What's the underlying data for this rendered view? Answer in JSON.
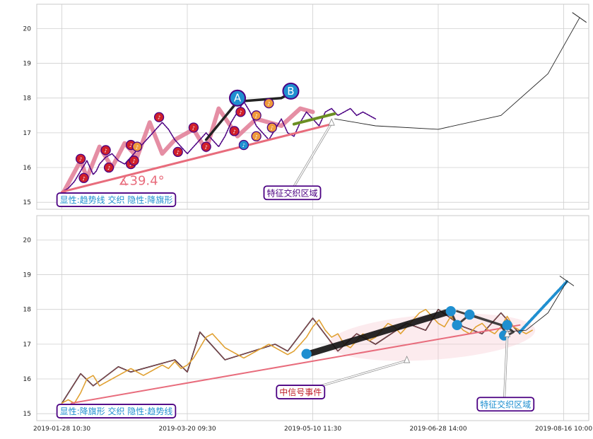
{
  "chart_data": [
    {
      "type": "line",
      "panel": "top",
      "ylim": [
        14.8,
        20.7
      ],
      "y_ticks": [
        15,
        16,
        17,
        18,
        19,
        20
      ],
      "x_domain": [
        -8,
        168
      ],
      "x_grid": [
        0,
        40,
        80,
        120,
        160
      ],
      "series": [
        {
          "role": "price",
          "color": "#4b0082",
          "x": [
            0,
            2,
            4,
            6,
            8,
            9,
            10,
            11,
            12,
            14,
            16,
            18,
            20,
            22,
            24,
            25,
            26,
            28,
            30,
            32,
            34,
            36,
            38,
            40,
            42,
            44,
            46,
            48,
            50,
            52,
            54,
            56,
            58,
            60,
            62,
            64,
            66,
            68,
            70,
            72,
            74,
            76,
            78,
            80,
            82,
            84,
            86,
            88,
            90,
            92,
            94,
            96,
            98,
            100
          ],
          "y": [
            15.3,
            15.4,
            15.6,
            15.9,
            16.2,
            16.0,
            15.8,
            15.9,
            16.1,
            16.3,
            16.4,
            16.2,
            16.1,
            16.3,
            16.5,
            16.6,
            16.7,
            16.9,
            17.1,
            17.3,
            17.1,
            16.8,
            16.6,
            16.4,
            16.6,
            16.8,
            17.0,
            16.8,
            16.6,
            16.9,
            17.3,
            17.6,
            17.9,
            17.6,
            17.2,
            17.0,
            16.8,
            17.1,
            17.4,
            17.0,
            16.9,
            17.3,
            17.6,
            17.4,
            17.2,
            17.6,
            17.7,
            17.5,
            17.6,
            17.7,
            17.5,
            17.6,
            17.5,
            17.4
          ]
        },
        {
          "role": "zigzag",
          "color": "#e07a94",
          "x": [
            0,
            6,
            8,
            12,
            16,
            20,
            24,
            28,
            32,
            36,
            42,
            46,
            50,
            56,
            62,
            70,
            76,
            80
          ],
          "y": [
            15.2,
            16.2,
            15.7,
            16.6,
            16.0,
            16.7,
            16.3,
            17.3,
            16.4,
            16.8,
            17.1,
            16.5,
            17.7,
            16.9,
            17.4,
            17.2,
            17.7,
            17.6
          ]
        },
        {
          "role": "trend-line",
          "color": "#e86c7c",
          "x": [
            0,
            86
          ],
          "y": [
            15.3,
            17.25
          ]
        },
        {
          "role": "feature-segment",
          "color": "#6b8e23",
          "x": [
            74,
            87
          ],
          "y": [
            17.25,
            17.55
          ]
        },
        {
          "role": "AB-leg",
          "color": "#222222",
          "x": [
            46,
            56,
            70,
            73
          ],
          "y": [
            16.8,
            17.9,
            18.0,
            18.15
          ]
        },
        {
          "role": "forecast-curve",
          "color": "#222222",
          "x": [
            87,
            100,
            120,
            140,
            155,
            165
          ],
          "y": [
            17.4,
            17.2,
            17.1,
            17.5,
            18.7,
            20.3
          ]
        }
      ],
      "markers": [
        {
          "label": "A",
          "x": 56,
          "y": 18.0,
          "color": "#1f8fd0",
          "size": "large"
        },
        {
          "label": "B",
          "x": 73,
          "y": 18.2,
          "color": "#1f8fd0",
          "size": "large"
        },
        {
          "label": "",
          "x": 6,
          "y": 16.25,
          "color": "#d0202a"
        },
        {
          "label": "",
          "x": 7,
          "y": 15.7,
          "color": "#d0202a"
        },
        {
          "label": "",
          "x": 14,
          "y": 16.5,
          "color": "#d0202a"
        },
        {
          "label": "",
          "x": 15,
          "y": 16.0,
          "color": "#d0202a"
        },
        {
          "label": "",
          "x": 22,
          "y": 16.1,
          "color": "#d0202a"
        },
        {
          "label": "",
          "x": 23,
          "y": 16.2,
          "color": "#d0202a"
        },
        {
          "label": "",
          "x": 22,
          "y": 16.65,
          "color": "#d0202a"
        },
        {
          "label": "",
          "x": 24,
          "y": 16.6,
          "color": "#ef9a3a"
        },
        {
          "label": "",
          "x": 31,
          "y": 17.45,
          "color": "#d0202a"
        },
        {
          "label": "",
          "x": 37,
          "y": 16.45,
          "color": "#d0202a"
        },
        {
          "label": "",
          "x": 42,
          "y": 17.15,
          "color": "#d0202a"
        },
        {
          "label": "",
          "x": 46,
          "y": 16.6,
          "color": "#d0202a"
        },
        {
          "label": "",
          "x": 55,
          "y": 17.05,
          "color": "#d0202a"
        },
        {
          "label": "",
          "x": 57,
          "y": 17.6,
          "color": "#d0202a"
        },
        {
          "label": "",
          "x": 58,
          "y": 16.65,
          "color": "#1f8fd0"
        },
        {
          "label": "",
          "x": 62,
          "y": 16.9,
          "color": "#ef9a3a"
        },
        {
          "label": "",
          "x": 62,
          "y": 17.5,
          "color": "#ef9a3a"
        },
        {
          "label": "",
          "x": 66,
          "y": 17.85,
          "color": "#ef9a3a"
        },
        {
          "label": "",
          "x": 67,
          "y": 17.15,
          "color": "#ef9a3a"
        }
      ],
      "annotations": [
        {
          "text": "∡39.4°",
          "x": 18,
          "y": 15.5,
          "color": "#e86c7c",
          "kind": "angle"
        },
        {
          "text": "显性:趋势线 交织 隐性:降旗形",
          "x": -2,
          "y": 14.9,
          "color": "#1f8fd0",
          "kind": "box"
        },
        {
          "text": "特征交织区域",
          "x": 64,
          "y": 15.1,
          "color": "#4b0082",
          "kind": "box",
          "arrow_to": [
            86,
            17.4
          ]
        }
      ],
      "baseline_box": {
        "x": 0,
        "y": 15.2,
        "length": 20,
        "color": "#e86c7c"
      }
    },
    {
      "type": "line",
      "panel": "bottom",
      "ylim": [
        14.8,
        20.7
      ],
      "y_ticks": [
        15,
        16,
        17,
        18,
        19,
        20
      ],
      "x_domain": [
        -8,
        168
      ],
      "x_grid": [
        0,
        40,
        80,
        120,
        160
      ],
      "x_tick_labels": [
        "2019-01-28 10:30",
        "2019-03-20 09:30",
        "2019-05-10 11:30",
        "2019-06-28 14:00",
        "2019-08-16 10:00"
      ],
      "series": [
        {
          "role": "price",
          "color": "#e0a030",
          "x": [
            0,
            2,
            4,
            6,
            8,
            10,
            12,
            14,
            16,
            18,
            20,
            22,
            24,
            26,
            28,
            30,
            32,
            34,
            36,
            38,
            40,
            42,
            44,
            46,
            48,
            50,
            52,
            54,
            56,
            58,
            60,
            62,
            64,
            66,
            68,
            70,
            72,
            74,
            76,
            78,
            80,
            82,
            84,
            86,
            88,
            90,
            92,
            94,
            96,
            98,
            100,
            102,
            104,
            106,
            108,
            110,
            112,
            114,
            116,
            118,
            120,
            122,
            124,
            126,
            128,
            130,
            132,
            134,
            136,
            138,
            140,
            142,
            144,
            146,
            148,
            150
          ],
          "y": [
            15.3,
            15.4,
            15.3,
            15.6,
            16.0,
            16.1,
            15.8,
            15.9,
            16.0,
            16.1,
            16.2,
            16.3,
            16.2,
            16.1,
            16.2,
            16.3,
            16.4,
            16.3,
            16.5,
            16.3,
            16.4,
            16.6,
            16.9,
            17.2,
            17.3,
            17.1,
            16.9,
            16.8,
            16.7,
            16.6,
            16.7,
            16.8,
            16.9,
            17.0,
            16.9,
            16.8,
            16.7,
            16.8,
            17.0,
            17.2,
            17.5,
            17.7,
            17.4,
            17.2,
            17.3,
            17.0,
            16.9,
            17.1,
            17.3,
            17.1,
            17.2,
            17.4,
            17.6,
            17.5,
            17.3,
            17.5,
            17.7,
            17.9,
            18.0,
            17.8,
            17.6,
            17.5,
            17.8,
            17.6,
            17.4,
            17.3,
            17.5,
            17.6,
            17.4,
            17.3,
            17.5,
            17.8,
            17.5,
            17.4,
            17.3,
            17.4
          ]
        },
        {
          "role": "zigzag",
          "color": "#111111",
          "x": [
            0,
            6,
            10,
            18,
            22,
            36,
            40,
            44,
            52,
            68,
            72,
            80,
            88,
            94,
            100,
            110,
            116,
            120,
            128,
            134,
            140,
            146
          ],
          "y": [
            15.3,
            16.15,
            15.8,
            16.35,
            16.2,
            16.55,
            16.2,
            17.35,
            16.55,
            17.0,
            16.8,
            17.75,
            16.8,
            17.3,
            17.0,
            17.6,
            17.4,
            18.0,
            17.5,
            17.3,
            17.9,
            17.3
          ]
        },
        {
          "role": "trend-line",
          "color": "#e86c7c",
          "x": [
            3,
            146
          ],
          "y": [
            15.3,
            17.55
          ]
        },
        {
          "role": "signal-leg",
          "color": "#111111",
          "x": [
            78,
            124
          ],
          "y": [
            16.7,
            17.95
          ]
        },
        {
          "role": "flag",
          "color": "#222222",
          "x": [
            124,
            126,
            130,
            142,
            144,
            142,
            140,
            126
          ],
          "y": [
            17.95,
            17.55,
            17.85,
            17.5,
            17.35,
            17.25,
            17.55,
            17.95
          ]
        },
        {
          "role": "forecast-segment",
          "color": "#1f8fd0",
          "x": [
            146,
            161
          ],
          "y": [
            17.35,
            18.8
          ]
        },
        {
          "role": "forecast-curve",
          "color": "#222222",
          "x": [
            140,
            148,
            155,
            161
          ],
          "y": [
            17.35,
            17.4,
            17.9,
            18.8
          ]
        }
      ],
      "markers": [
        {
          "label": "",
          "x": 78,
          "y": 16.72,
          "color": "#1f8fd0"
        },
        {
          "label": "",
          "x": 124,
          "y": 17.95,
          "color": "#1f8fd0"
        },
        {
          "label": "",
          "x": 126,
          "y": 17.55,
          "color": "#1f8fd0"
        },
        {
          "label": "",
          "x": 130,
          "y": 17.85,
          "color": "#1f8fd0"
        },
        {
          "label": "",
          "x": 142,
          "y": 17.55,
          "color": "#1f8fd0"
        },
        {
          "label": "",
          "x": 141,
          "y": 17.25,
          "color": "#1f8fd0"
        }
      ],
      "annotations": [
        {
          "text": "显性:降旗形 交织 隐性:趋势线",
          "x": -2,
          "y": 14.9,
          "color": "#1f8fd0",
          "kind": "box"
        },
        {
          "text": "中信号事件",
          "x": 68,
          "y": 15.45,
          "color": "#c0202a",
          "kind": "box",
          "arrow_to": [
            110,
            16.65
          ]
        },
        {
          "text": "特征交织区域",
          "x": 132,
          "y": 15.1,
          "color": "#1f8fd0",
          "kind": "box",
          "arrow_to": [
            142,
            17.4
          ]
        }
      ],
      "ellipse": {
        "cx": 118,
        "cy": 17.2,
        "rx": 33,
        "ry": 0.65,
        "color": "#f5c6cf"
      }
    }
  ]
}
